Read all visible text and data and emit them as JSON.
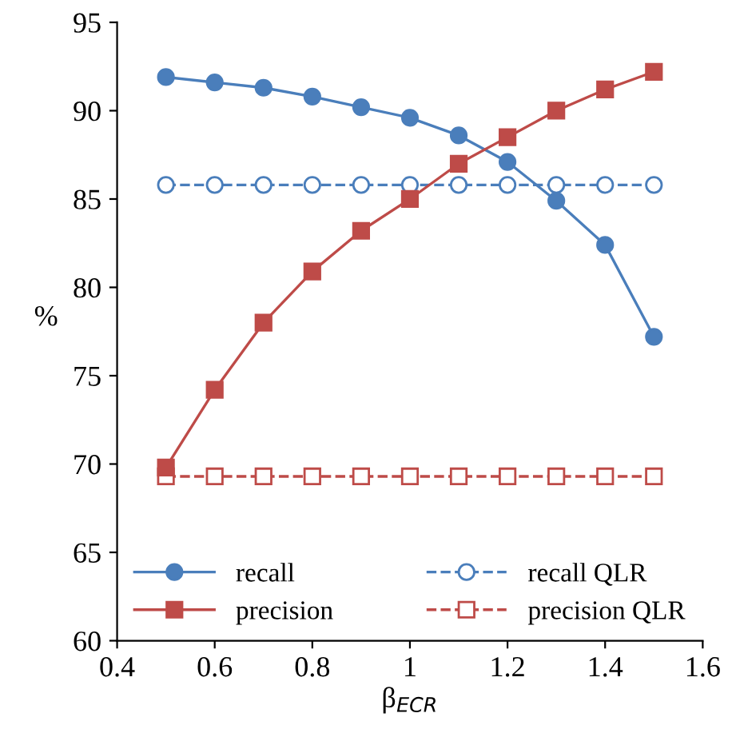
{
  "chart_data": {
    "type": "line",
    "xlabel": "β$_{ECR}$",
    "ylabel": "%",
    "x": [
      0.5,
      0.6,
      0.7,
      0.8,
      0.9,
      1,
      1.1,
      1.2,
      1.3,
      1.4,
      1.5
    ],
    "series": [
      {
        "name": "recall",
        "color": "#4a7ebb",
        "marker": "circle",
        "line_style": "solid",
        "values": [
          91.9,
          91.6,
          91.3,
          90.8,
          90.2,
          89.6,
          88.6,
          87.1,
          84.9,
          82.4,
          77.2
        ]
      },
      {
        "name": "precision",
        "color": "#be4b48",
        "marker": "square",
        "line_style": "solid",
        "values": [
          69.8,
          74.2,
          78.0,
          80.9,
          83.2,
          85.0,
          87.0,
          88.5,
          90.0,
          91.2,
          92.2
        ]
      },
      {
        "name": "recall QLR",
        "color": "#4a7ebb",
        "marker": "circle",
        "line_style": "dashed",
        "values": [
          85.8,
          85.8,
          85.8,
          85.8,
          85.8,
          85.8,
          85.8,
          85.8,
          85.8,
          85.8,
          85.8
        ]
      },
      {
        "name": "precision QLR",
        "color": "#be4b48",
        "marker": "square",
        "line_style": "dashed",
        "values": [
          69.3,
          69.3,
          69.3,
          69.3,
          69.3,
          69.3,
          69.3,
          69.3,
          69.3,
          69.3,
          69.3
        ]
      }
    ],
    "xlim": [
      0.4,
      1.6
    ],
    "xticks": [
      0.4,
      0.6,
      0.8,
      1,
      1.2,
      1.4,
      1.6
    ],
    "ylim": [
      60,
      95
    ],
    "yticks": [
      60,
      65,
      70,
      75,
      80,
      85,
      90,
      95
    ],
    "grid": false,
    "legend": "bottom"
  }
}
